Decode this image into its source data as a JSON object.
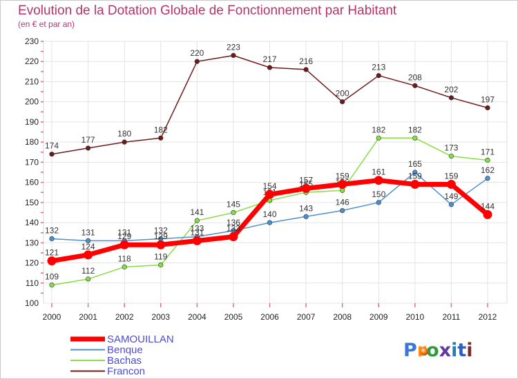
{
  "chart_data": {
    "type": "line",
    "title": "Evolution de la Dotation Globale de Fonctionnement par Habitant",
    "subtitle": "(en € et par an)",
    "xlabel": "",
    "ylabel": "",
    "ylim": [
      100,
      230
    ],
    "ytick_step": 10,
    "grid": true,
    "categories": [
      "2000",
      "2001",
      "2002",
      "2003",
      "2004",
      "2005",
      "2006",
      "2007",
      "2008",
      "2009",
      "2010",
      "2011",
      "2012"
    ],
    "series": [
      {
        "name": "SAMOUILLAN",
        "color": "#ff0000",
        "values": [
          121,
          124,
          129,
          129,
          131,
          133,
          154,
          157,
          159,
          161,
          159,
          159,
          144
        ]
      },
      {
        "name": "Benque",
        "color": "#4a8fd0",
        "values": [
          132,
          131,
          131,
          132,
          133,
          136,
          140,
          143,
          146,
          150,
          165,
          149,
          162
        ]
      },
      {
        "name": "Bachas",
        "color": "#88dd44",
        "values": [
          109,
          112,
          118,
          119,
          141,
          145,
          151,
          155,
          156,
          182,
          182,
          173,
          171
        ]
      },
      {
        "name": "Francon",
        "color": "#6e1a1a",
        "values": [
          174,
          177,
          180,
          182,
          220,
          223,
          217,
          216,
          200,
          213,
          208,
          202,
          197
        ]
      }
    ],
    "legend_position": "bottom-left"
  },
  "brand": {
    "text": "Proxiti",
    "letters": [
      "P",
      "r",
      "o",
      "x",
      "i",
      "t",
      "i"
    ]
  }
}
